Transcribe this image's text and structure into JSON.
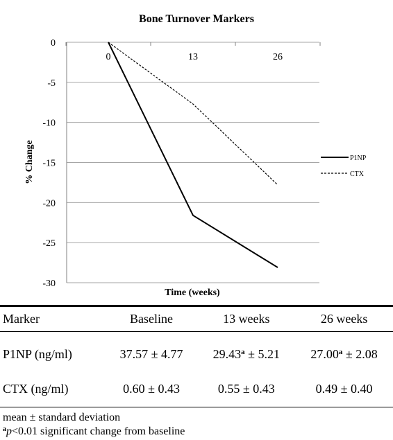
{
  "chart_data": {
    "type": "line",
    "title": "Bone Turnover Markers",
    "xlabel": "Time (weeks)",
    "ylabel": "% Change",
    "x": [
      0,
      13,
      26
    ],
    "x_tick_labels": [
      "0",
      "13",
      "26"
    ],
    "ylim": [
      -30,
      0
    ],
    "y_ticks": [
      0,
      -5,
      -10,
      -15,
      -20,
      -25,
      -30
    ],
    "y_tick_labels": [
      "0",
      "-5",
      "-10",
      "-15",
      "-20",
      "-25",
      "-30"
    ],
    "grid": true,
    "legend_position": "right",
    "series": [
      {
        "name": "P1NP",
        "values": [
          0,
          -21.6,
          -28.1
        ],
        "style": "solid"
      },
      {
        "name": "CTX",
        "values": [
          0,
          -7.7,
          -17.8
        ],
        "style": "dashed"
      }
    ]
  },
  "table": {
    "headers": [
      "Marker",
      "Baseline",
      "13 weeks",
      "26 weeks"
    ],
    "rows": [
      {
        "marker": "P1NP (ng/ml)",
        "baseline": "37.57 ± 4.77",
        "w13_value": "29.43",
        "w13_sup": "a",
        "w13_rest": " ± 5.21",
        "w26_value": "27.00",
        "w26_sup": "a",
        "w26_rest": " ± 2.08"
      },
      {
        "marker": "CTX (ng/ml)",
        "baseline": "0.60 ± 0.43",
        "w13": "0.55 ± 0.43",
        "w26": "0.49 ± 0.40"
      }
    ]
  },
  "footnotes": {
    "line1": "mean ± standard deviation",
    "line2_sup": "a",
    "line2_italic": "p",
    "line2_text": "<0.01 significant change from baseline"
  },
  "colors": {
    "line": "#000000",
    "grid": "#a6a6a6"
  }
}
